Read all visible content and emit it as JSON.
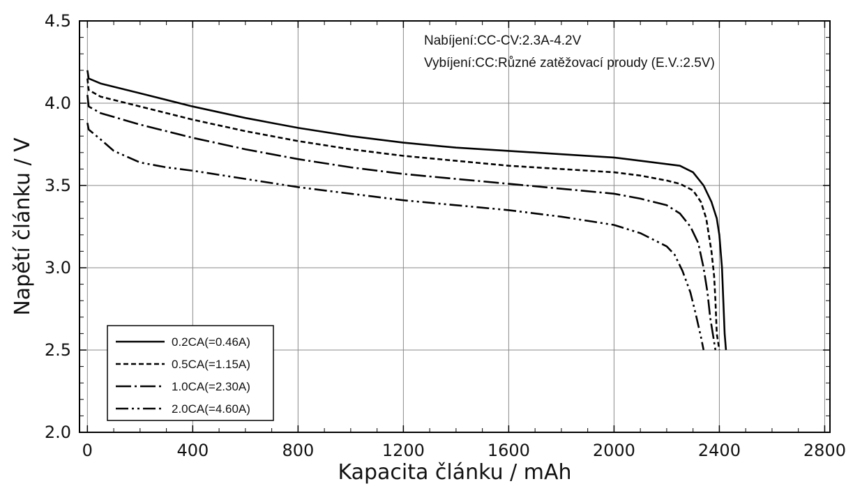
{
  "chart_data": {
    "type": "line",
    "xlabel": "Kapacita článku /  mAh",
    "ylabel": "Napětí článku / V",
    "xlim": [
      -30,
      2820
    ],
    "ylim": [
      2.0,
      4.5
    ],
    "x_ticks": [
      0,
      400,
      800,
      1200,
      1600,
      2000,
      2400,
      2800
    ],
    "y_ticks": [
      2.0,
      2.5,
      3.0,
      3.5,
      4.0,
      4.5
    ],
    "x_tick_labels": [
      "0",
      "400",
      "800",
      "1200",
      "1600",
      "2000",
      "2400",
      "2800"
    ],
    "y_tick_labels": [
      "2.0",
      "2.5",
      "3.0",
      "3.5",
      "4.0",
      "4.5"
    ],
    "grid": true,
    "legend_position": "bottom-left",
    "annotations": [
      "Nabíjení:CC-CV:2.3A-4.2V",
      "Vybíjení:CC:Různé zatěžovací proudy (E.V.:2.5V)"
    ],
    "series": [
      {
        "name": "0.2CA(=0.46A)",
        "style": "solid",
        "x": [
          0,
          5,
          50,
          200,
          400,
          600,
          800,
          1000,
          1200,
          1400,
          1600,
          1800,
          2000,
          2100,
          2200,
          2250,
          2300,
          2340,
          2370,
          2390,
          2400,
          2410,
          2415,
          2420,
          2425
        ],
        "y": [
          4.2,
          4.15,
          4.12,
          4.06,
          3.98,
          3.91,
          3.85,
          3.8,
          3.76,
          3.73,
          3.71,
          3.69,
          3.67,
          3.65,
          3.63,
          3.62,
          3.58,
          3.5,
          3.4,
          3.3,
          3.2,
          3.0,
          2.8,
          2.6,
          2.5
        ]
      },
      {
        "name": "0.5CA(=1.15A)",
        "style": "dashed",
        "x": [
          0,
          5,
          50,
          200,
          400,
          600,
          800,
          1000,
          1200,
          1400,
          1600,
          1800,
          2000,
          2100,
          2200,
          2250,
          2300,
          2330,
          2350,
          2360,
          2370,
          2380,
          2385,
          2390,
          2400
        ],
        "y": [
          4.15,
          4.08,
          4.04,
          3.98,
          3.9,
          3.83,
          3.77,
          3.72,
          3.68,
          3.65,
          3.62,
          3.6,
          3.58,
          3.56,
          3.53,
          3.51,
          3.47,
          3.4,
          3.3,
          3.2,
          3.1,
          2.95,
          2.8,
          2.6,
          2.5
        ]
      },
      {
        "name": "1.0CA(=2.30A)",
        "style": "dashdot",
        "x": [
          0,
          5,
          50,
          200,
          400,
          600,
          800,
          1000,
          1200,
          1400,
          1600,
          1800,
          2000,
          2100,
          2200,
          2250,
          2290,
          2320,
          2340,
          2355,
          2365,
          2375,
          2380,
          2385
        ],
        "y": [
          4.05,
          3.98,
          3.94,
          3.87,
          3.79,
          3.72,
          3.66,
          3.61,
          3.57,
          3.54,
          3.51,
          3.48,
          3.45,
          3.42,
          3.38,
          3.33,
          3.25,
          3.15,
          3.0,
          2.85,
          2.7,
          2.6,
          2.55,
          2.5
        ]
      },
      {
        "name": "2.0CA(=4.60A)",
        "style": "dashdotdot",
        "x": [
          0,
          5,
          50,
          100,
          200,
          300,
          400,
          600,
          800,
          1000,
          1200,
          1400,
          1600,
          1800,
          2000,
          2100,
          2200,
          2230,
          2260,
          2290,
          2310,
          2330,
          2340
        ],
        "y": [
          3.88,
          3.84,
          3.78,
          3.71,
          3.64,
          3.61,
          3.59,
          3.54,
          3.49,
          3.45,
          3.41,
          3.38,
          3.35,
          3.31,
          3.26,
          3.21,
          3.13,
          3.08,
          2.98,
          2.85,
          2.72,
          2.58,
          2.5
        ]
      }
    ]
  }
}
